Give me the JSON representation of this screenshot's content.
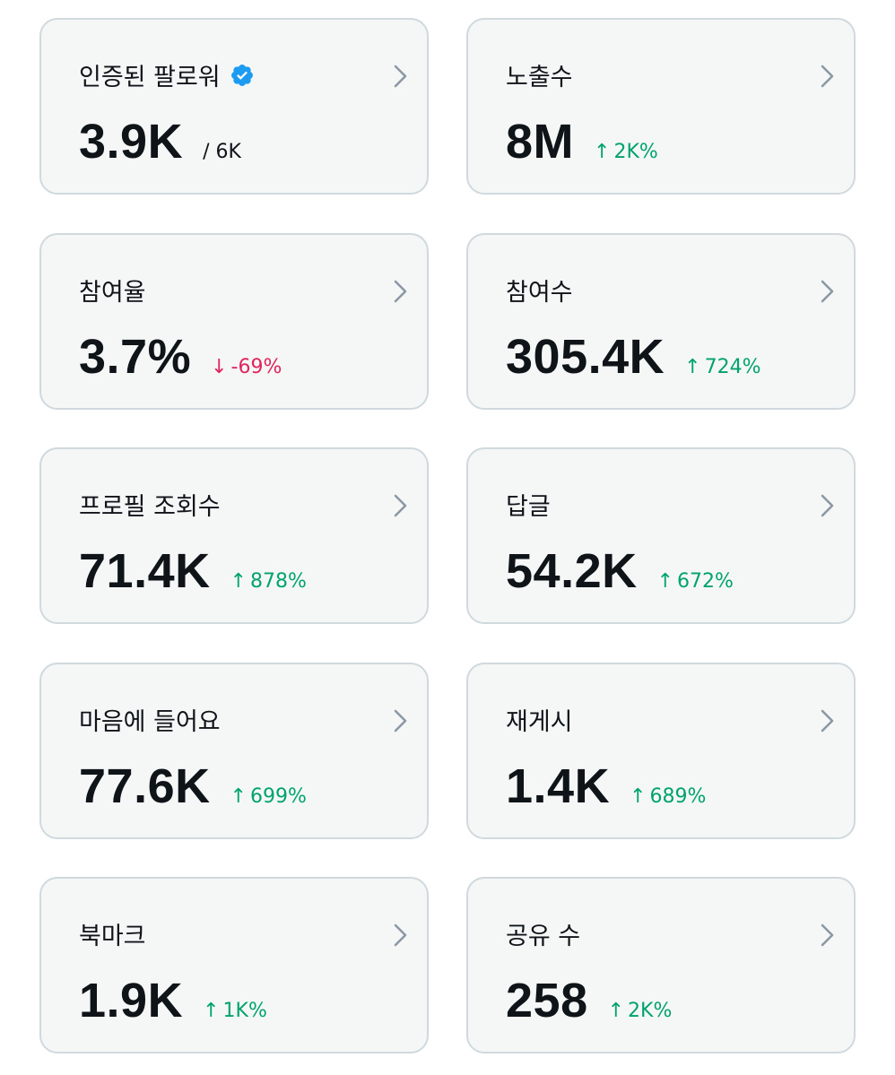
{
  "colors": {
    "card_bg": "#f5f7f7",
    "card_border": "#cfd9de",
    "text": "#0f1419",
    "up": "#00a36c",
    "down": "#e0245e",
    "chevron": "#8b98a5",
    "verified": "#1d9bf0"
  },
  "cards": [
    {
      "label": "인증된 팔로워",
      "value": "3.9K",
      "sub": "/ 6K",
      "verified_icon": "verified-badge-icon"
    },
    {
      "label": "노출수",
      "value": "8M",
      "delta_arrow": "↑",
      "delta": "2K%",
      "direction": "up"
    },
    {
      "label": "참여율",
      "value": "3.7%",
      "delta_arrow": "↓",
      "delta": "-69%",
      "direction": "down"
    },
    {
      "label": "참여수",
      "value": "305.4K",
      "delta_arrow": "↑",
      "delta": "724%",
      "direction": "up"
    },
    {
      "label": "프로필 조회수",
      "value": "71.4K",
      "delta_arrow": "↑",
      "delta": "878%",
      "direction": "up"
    },
    {
      "label": "답글",
      "value": "54.2K",
      "delta_arrow": "↑",
      "delta": "672%",
      "direction": "up"
    },
    {
      "label": "마음에 들어요",
      "value": "77.6K",
      "delta_arrow": "↑",
      "delta": "699%",
      "direction": "up"
    },
    {
      "label": "재게시",
      "value": "1.4K",
      "delta_arrow": "↑",
      "delta": "689%",
      "direction": "up"
    },
    {
      "label": "북마크",
      "value": "1.9K",
      "delta_arrow": "↑",
      "delta": "1K%",
      "direction": "up"
    },
    {
      "label": "공유 수",
      "value": "258",
      "delta_arrow": "↑",
      "delta": "2K%",
      "direction": "up"
    }
  ]
}
